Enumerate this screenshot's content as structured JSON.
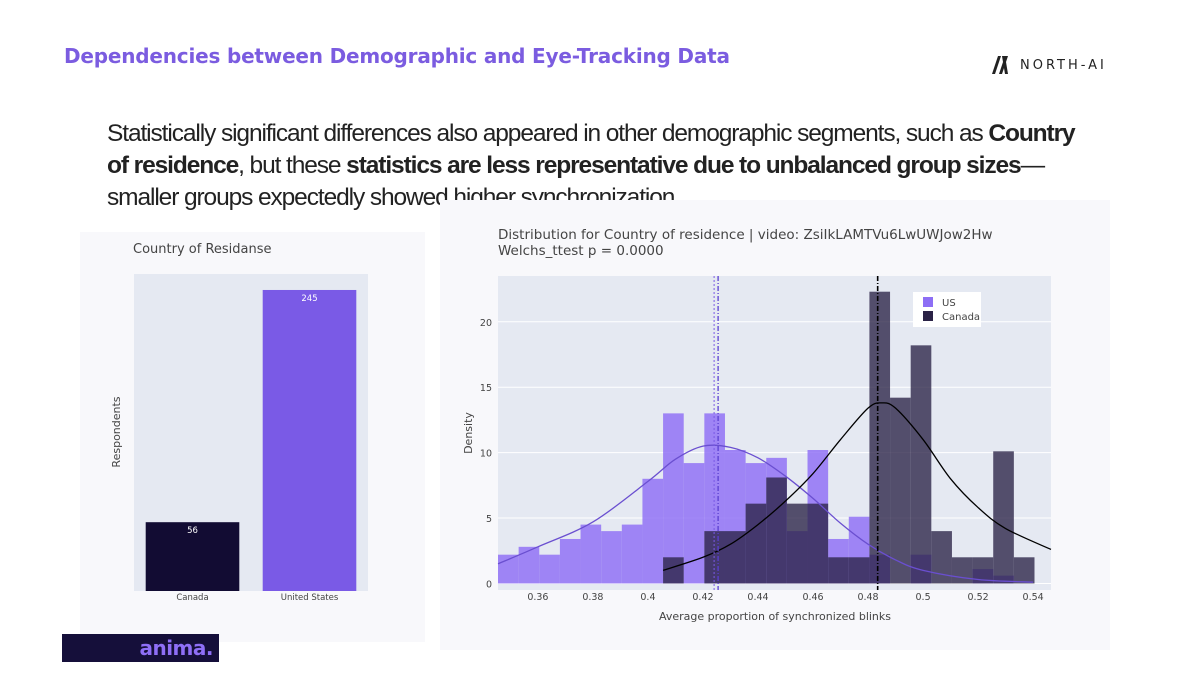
{
  "slide": {
    "title": "Dependencies between Demographic and Eye-Tracking Data",
    "brand": "NORTH-AI",
    "logo": "anima.",
    "body": {
      "t1": "Statistically significant differences also appeared in other demographic segments, such as ",
      "b1": "Country of residence",
      "t2": ", but these ",
      "b2": "statistics are less representative due to unbalanced group sizes",
      "t3": "—smaller groups expectedly showed higher synchronization."
    }
  },
  "chart_data": [
    {
      "type": "bar",
      "title": "Country of Residanse",
      "xlabel": "",
      "ylabel": "Respondents",
      "categories": [
        "Canada",
        "United States"
      ],
      "values": [
        56,
        245
      ],
      "colors": [
        "#120c33",
        "#7a5ae6"
      ],
      "ylim": [
        0,
        258
      ]
    },
    {
      "type": "histogram",
      "title": "Distribution for Country of residence | video: ZsiIkLAMTVu6LwUWJow2Hw",
      "subtitle": "Welchs_ttest p = 0.0000",
      "xlabel": "Average proportion of synchronized blinks",
      "ylabel": "Density",
      "xlim": [
        0.3455,
        0.5465
      ],
      "ylim": [
        -0.5,
        23.5
      ],
      "xticks": [
        0.36,
        0.38,
        0.4,
        0.42,
        0.44,
        0.46,
        0.48,
        0.5,
        0.52,
        0.54
      ],
      "xtick_labels": [
        "0.36",
        "0.38",
        "0.4",
        "0.42",
        "0.44",
        "0.46",
        "0.48",
        "0.5",
        "0.52",
        "0.54"
      ],
      "yticks": [
        0,
        5,
        10,
        15,
        20
      ],
      "ytick_labels": [
        "0",
        "5",
        "10",
        "15",
        "20"
      ],
      "legend": {
        "position": "top-right"
      },
      "series": [
        {
          "name": "US",
          "color": "#8d6ef5",
          "bin_width": 0.0075,
          "bin_starts": [
            0.3455,
            0.353,
            0.3605,
            0.368,
            0.3755,
            0.383,
            0.3905,
            0.398,
            0.4055,
            0.413,
            0.4205,
            0.428,
            0.4355,
            0.443,
            0.4505,
            0.458,
            0.4655,
            0.473,
            0.4805,
            0.488,
            0.4955,
            0.503,
            0.5105,
            0.518,
            0.5255
          ],
          "values": [
            2.2,
            2.8,
            2.2,
            3.4,
            4.5,
            4.0,
            4.5,
            8.0,
            13.0,
            9.2,
            13.0,
            10.2,
            9.2,
            9.6,
            4.0,
            10.2,
            3.4,
            5.1,
            2.2,
            0.0,
            2.2,
            0.0,
            0.0,
            1.1,
            0.6
          ],
          "mean": 0.4255,
          "kde_x": [
            0.3455,
            0.36,
            0.38,
            0.4,
            0.41,
            0.42,
            0.43,
            0.44,
            0.45,
            0.46,
            0.47,
            0.48,
            0.49,
            0.5,
            0.52,
            0.54
          ],
          "kde_y": [
            1.5,
            2.8,
            4.7,
            7.8,
            9.5,
            10.5,
            10.4,
            9.6,
            8.2,
            6.5,
            4.6,
            3.0,
            1.8,
            1.0,
            0.3,
            0.1
          ]
        },
        {
          "name": "Canada",
          "color": "#2a2246",
          "bin_width": 0.0075,
          "bin_starts": [
            0.4055,
            0.413,
            0.4205,
            0.428,
            0.4355,
            0.443,
            0.4505,
            0.458,
            0.4655,
            0.473,
            0.4805,
            0.488,
            0.4955,
            0.503,
            0.5105,
            0.518,
            0.5255,
            0.533
          ],
          "values": [
            2.0,
            0.0,
            4.0,
            4.0,
            6.1,
            8.1,
            6.1,
            6.1,
            2.0,
            2.0,
            22.3,
            14.2,
            18.2,
            4.0,
            2.0,
            2.0,
            10.1,
            2.0
          ],
          "mean": 0.4835,
          "kde_x": [
            0.4055,
            0.42,
            0.43,
            0.44,
            0.45,
            0.46,
            0.47,
            0.48,
            0.485,
            0.49,
            0.5,
            0.51,
            0.52,
            0.53,
            0.5465
          ],
          "kde_y": [
            1.0,
            2.0,
            3.0,
            4.5,
            6.3,
            8.4,
            11.0,
            13.4,
            13.8,
            13.4,
            11.0,
            8.0,
            5.8,
            4.2,
            2.6
          ]
        }
      ]
    }
  ]
}
